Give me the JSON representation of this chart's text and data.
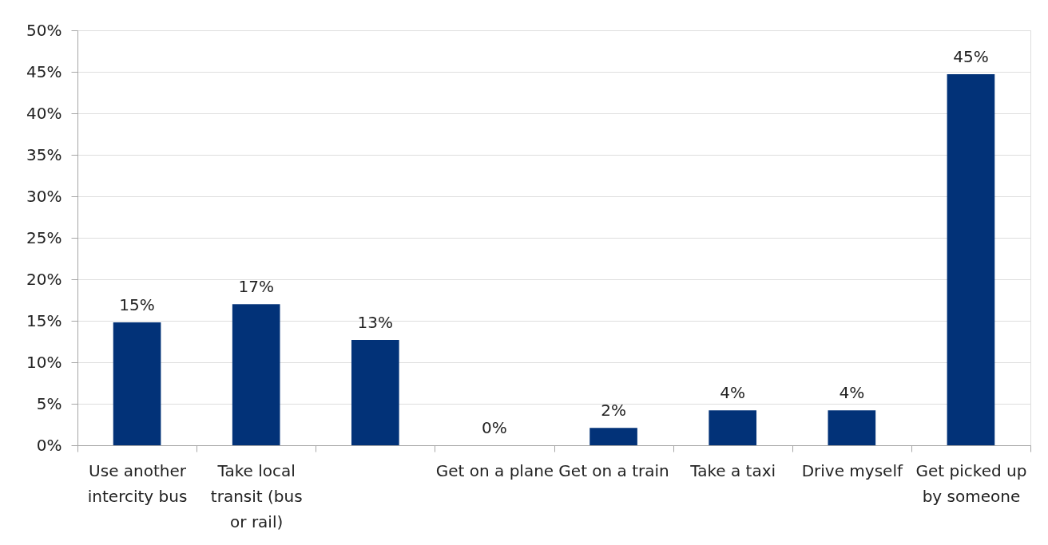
{
  "chart_data": {
    "type": "bar",
    "categories": [
      "Use another intercity bus",
      "Take local transit (bus or rail)",
      null,
      "Get on a plane",
      "Get on a train",
      "Take a taxi",
      "Drive myself",
      "Get picked up by someone"
    ],
    "values": [
      14.8,
      17.0,
      12.7,
      0,
      2.1,
      4.2,
      4.2,
      44.7
    ],
    "value_labels": [
      "15%",
      "17%",
      "13%",
      "0%",
      "2%",
      "4%",
      "4%",
      "45%"
    ],
    "color": "#023278",
    "ylim": [
      0,
      50
    ],
    "yticks": [
      {
        "value": 0,
        "label": "0%"
      },
      {
        "value": 5,
        "label": "5%"
      },
      {
        "value": 10,
        "label": "10%"
      },
      {
        "value": 15,
        "label": "15%"
      },
      {
        "value": 20,
        "label": "20%"
      },
      {
        "value": 25,
        "label": "25%"
      },
      {
        "value": 30,
        "label": "30%"
      },
      {
        "value": 35,
        "label": "35%"
      },
      {
        "value": 40,
        "label": "40%"
      },
      {
        "value": 45,
        "label": "45%"
      },
      {
        "value": 50,
        "label": "50%"
      }
    ],
    "grid": "y"
  }
}
